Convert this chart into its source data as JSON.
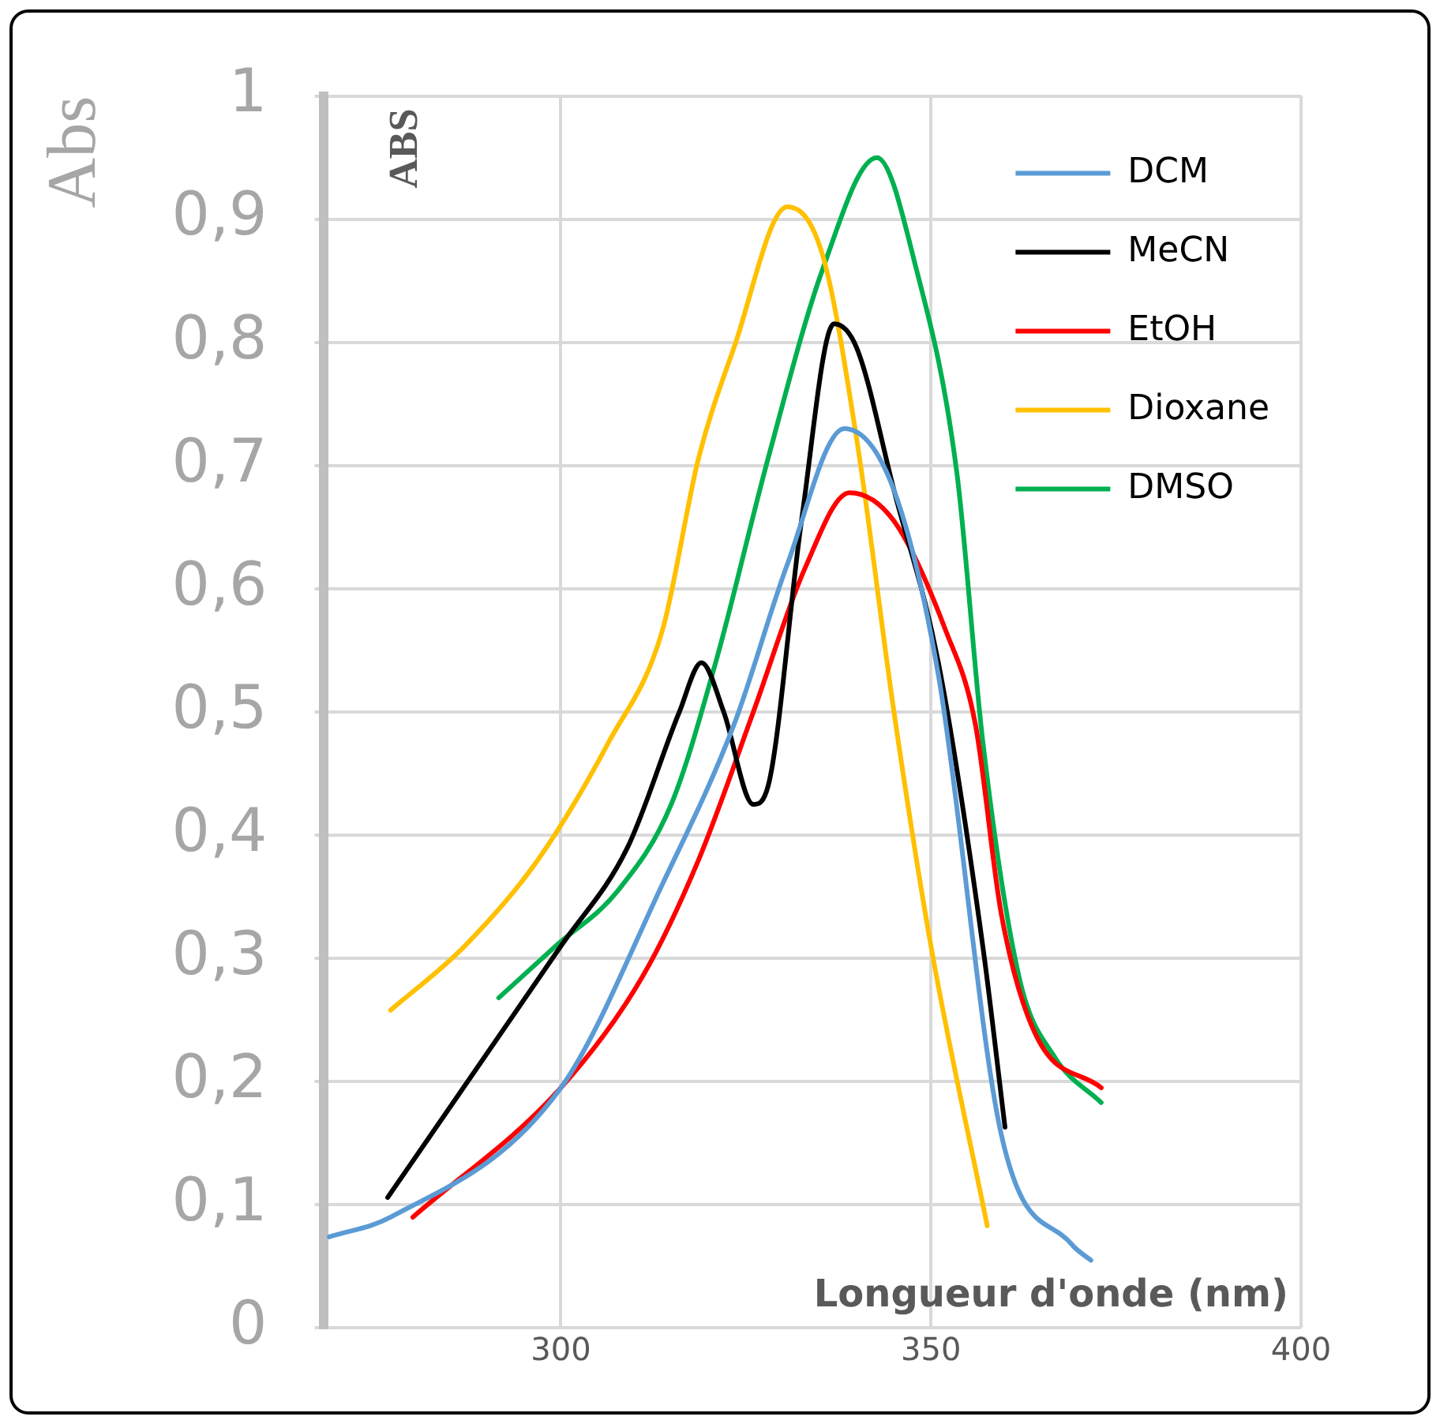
{
  "chart_data": {
    "type": "line",
    "ylabel": "Abs",
    "xlabel": "Longueur d'onde (nm)",
    "annotations": [
      "ABS"
    ],
    "xlim": [
      268,
      400
    ],
    "xticks": [
      300,
      350,
      400
    ],
    "ylim": [
      0,
      1
    ],
    "yticks": [
      {
        "value": 0,
        "label": "0"
      },
      {
        "value": 0.1,
        "label": "0,1"
      },
      {
        "value": 0.2,
        "label": "0,2"
      },
      {
        "value": 0.3,
        "label": "0,3"
      },
      {
        "value": 0.4,
        "label": "0,4"
      },
      {
        "value": 0.5,
        "label": "0,5"
      },
      {
        "value": 0.6,
        "label": "0,6"
      },
      {
        "value": 0.7,
        "label": "0,7"
      },
      {
        "value": 0.8,
        "label": "0,8"
      },
      {
        "value": 0.9,
        "label": "0,9"
      },
      {
        "value": 1,
        "label": "1"
      }
    ],
    "grid": true,
    "legend": "top right",
    "marker": "none",
    "line_style": "solid",
    "series": [
      {
        "name": "DCM",
        "color": "#5b9bd5",
        "x": [
          268.7,
          277,
          300,
          313.7,
          323.4,
          330.6,
          338.3,
          345,
          351,
          359.5,
          369,
          371.6
        ],
        "values": [
          0.074,
          0.09,
          0.195,
          0.36,
          0.49,
          0.62,
          0.73,
          0.68,
          0.53,
          0.157,
          0.068,
          0.055
        ]
      },
      {
        "name": "MeCN",
        "color": "#000000",
        "x": [
          276.6,
          300,
          309,
          316,
          319,
          322,
          326,
          328,
          332.5,
          336.9,
          340,
          345,
          351,
          357,
          360
        ],
        "values": [
          0.106,
          0.31,
          0.39,
          0.5,
          0.54,
          0.5,
          0.425,
          0.44,
          0.655,
          0.815,
          0.795,
          0.68,
          0.54,
          0.31,
          0.163
        ]
      },
      {
        "name": "EtOH",
        "color": "#ff0000",
        "x": [
          280,
          300,
          311,
          318.6,
          326,
          333,
          339,
          345,
          352,
          356,
          359.5,
          364,
          373
        ],
        "values": [
          0.09,
          0.195,
          0.285,
          0.38,
          0.5,
          0.617,
          0.678,
          0.655,
          0.566,
          0.49,
          0.336,
          0.24,
          0.195
        ]
      },
      {
        "name": "Dioxane",
        "color": "#ffc000",
        "x": [
          277,
          287,
          296.9,
          306.5,
          313.7,
          318.6,
          323.4,
          330.6,
          335.4,
          340,
          345,
          350,
          357.6
        ],
        "values": [
          0.258,
          0.31,
          0.38,
          0.476,
          0.566,
          0.706,
          0.796,
          0.91,
          0.87,
          0.72,
          0.5,
          0.31,
          0.083
        ]
      },
      {
        "name": "DMSO",
        "color": "#00b050",
        "x": [
          291.6,
          299.3,
          307.7,
          314.9,
          320.9,
          328,
          335.4,
          342.7,
          348,
          353.5,
          357,
          361.9,
          366.7,
          373
        ],
        "values": [
          0.268,
          0.31,
          0.355,
          0.425,
          0.54,
          0.706,
          0.86,
          0.95,
          0.86,
          0.694,
          0.476,
          0.285,
          0.22,
          0.183
        ]
      }
    ]
  }
}
